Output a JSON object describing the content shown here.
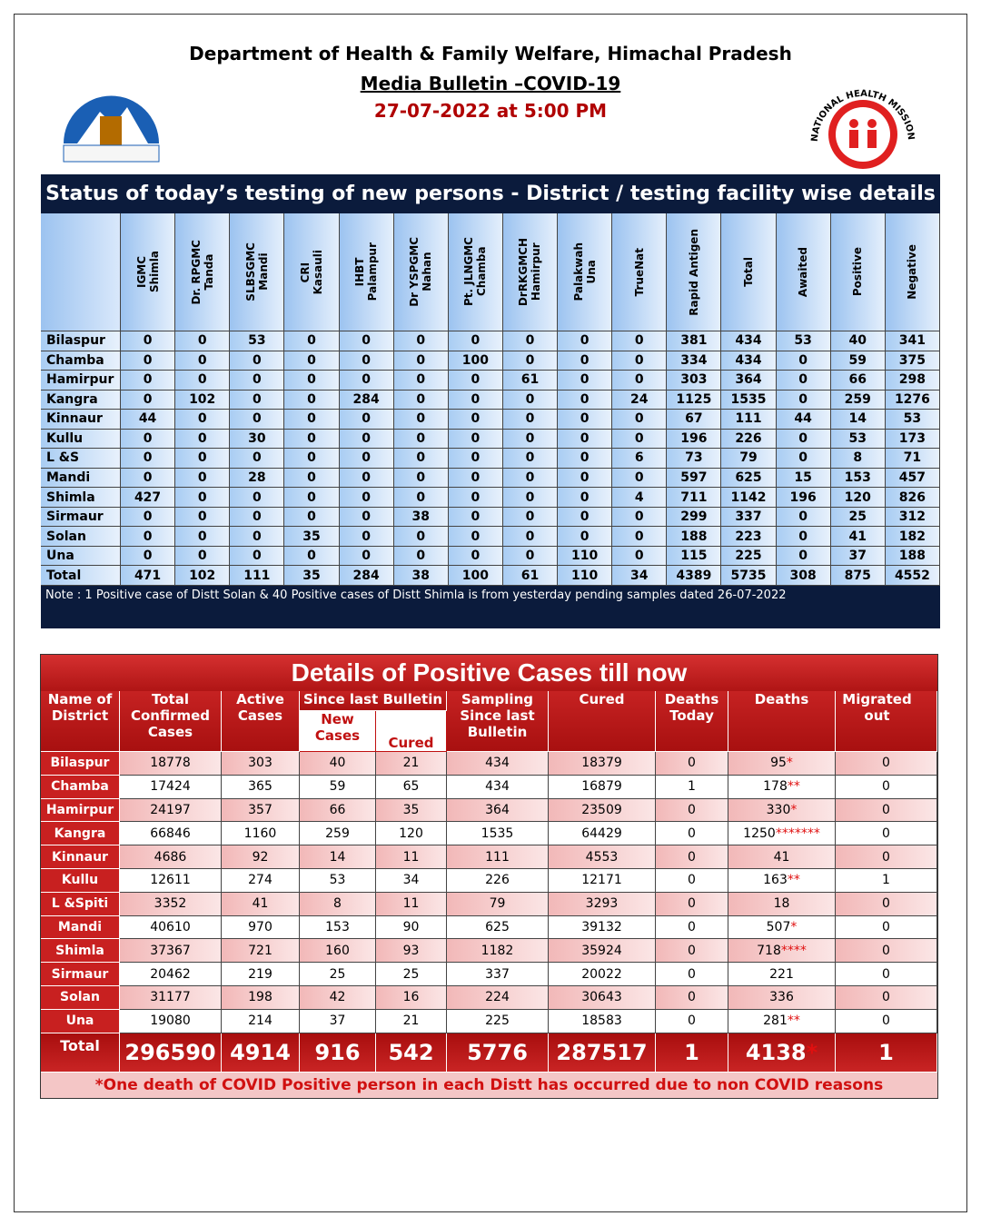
{
  "header": {
    "department": "Department of Health & Family Welfare, Himachal Pradesh",
    "bulletin": "Media Bulletin –COVID-19",
    "datetime": "27-07-2022 at 5:00 PM",
    "nhm_logo": "NATIONAL HEALTH MISSION"
  },
  "testing_table": {
    "title": "Status of today’s testing of new persons - District / testing facility wise details",
    "columns": [
      [
        "IGMC",
        "Shimla"
      ],
      [
        "Dr. RPGMC",
        "Tanda"
      ],
      [
        "SLBSGMC",
        "Mandi"
      ],
      [
        "CRI",
        "Kasauli"
      ],
      [
        "IHBT",
        "Palampur"
      ],
      [
        "Dr YSPGMC",
        "Nahan"
      ],
      [
        "Pt. JLNGMC",
        "Chamba"
      ],
      [
        "DrRKGMCH",
        "Hamirpur"
      ],
      [
        "Palakwah",
        "Una"
      ],
      [
        "TrueNat"
      ],
      [
        "Rapid  Antigen"
      ],
      [
        "Total"
      ],
      [
        "Awaited"
      ],
      [
        "Positive"
      ],
      [
        "Negative"
      ]
    ],
    "rows": [
      [
        "Bilaspur",
        0,
        0,
        53,
        0,
        0,
        0,
        0,
        0,
        0,
        0,
        381,
        434,
        53,
        40,
        341
      ],
      [
        "Chamba",
        0,
        0,
        0,
        0,
        0,
        0,
        100,
        0,
        0,
        0,
        334,
        434,
        0,
        59,
        375
      ],
      [
        "Hamirpur",
        0,
        0,
        0,
        0,
        0,
        0,
        0,
        61,
        0,
        0,
        303,
        364,
        0,
        66,
        298
      ],
      [
        "Kangra",
        0,
        102,
        0,
        0,
        284,
        0,
        0,
        0,
        0,
        24,
        1125,
        1535,
        0,
        259,
        1276
      ],
      [
        "Kinnaur",
        44,
        0,
        0,
        0,
        0,
        0,
        0,
        0,
        0,
        0,
        67,
        111,
        44,
        14,
        53
      ],
      [
        "Kullu",
        0,
        0,
        30,
        0,
        0,
        0,
        0,
        0,
        0,
        0,
        196,
        226,
        0,
        53,
        173
      ],
      [
        "L &S",
        0,
        0,
        0,
        0,
        0,
        0,
        0,
        0,
        0,
        6,
        73,
        79,
        0,
        8,
        71
      ],
      [
        "Mandi",
        0,
        0,
        28,
        0,
        0,
        0,
        0,
        0,
        0,
        0,
        597,
        625,
        15,
        153,
        457
      ],
      [
        "Shimla",
        427,
        0,
        0,
        0,
        0,
        0,
        0,
        0,
        0,
        4,
        711,
        1142,
        196,
        120,
        826
      ],
      [
        "Sirmaur",
        0,
        0,
        0,
        0,
        0,
        38,
        0,
        0,
        0,
        0,
        299,
        337,
        0,
        25,
        312
      ],
      [
        "Solan",
        0,
        0,
        0,
        35,
        0,
        0,
        0,
        0,
        0,
        0,
        188,
        223,
        0,
        41,
        182
      ],
      [
        "Una",
        0,
        0,
        0,
        0,
        0,
        0,
        0,
        0,
        110,
        0,
        115,
        225,
        0,
        37,
        188
      ],
      [
        "Total",
        471,
        102,
        111,
        35,
        284,
        38,
        100,
        61,
        110,
        34,
        4389,
        5735,
        308,
        875,
        4552
      ]
    ],
    "note": "Note : 1 Positive case of Distt Solan &  40 Positive cases of Distt Shimla  is from yesterday pending samples dated 26-07-2022"
  },
  "positive_table": {
    "title": "Details of Positive Cases till now",
    "headers": {
      "name": "Name of District",
      "total": "Total Confirmed Cases",
      "active": "Active Cases",
      "since": "Since last Bulletin",
      "new": "New Cases",
      "cured_since": "Cured",
      "sampling": "Sampling Since last Bulletin",
      "cured": "Cured",
      "deaths_today": "Deaths Today",
      "deaths": "Deaths",
      "migrated": "Migrated out"
    },
    "rows": [
      [
        "Bilaspur",
        18778,
        303,
        40,
        21,
        434,
        18379,
        0,
        {
          "value": 95,
          "mark": "*"
        },
        0
      ],
      [
        "Chamba",
        17424,
        365,
        59,
        65,
        434,
        16879,
        1,
        {
          "value": 178,
          "mark": "**"
        },
        0
      ],
      [
        "Hamirpur",
        24197,
        357,
        66,
        35,
        364,
        23509,
        0,
        {
          "value": 330,
          "mark": "*"
        },
        0
      ],
      [
        "Kangra",
        66846,
        1160,
        259,
        120,
        1535,
        64429,
        0,
        {
          "value": 1250,
          "mark": "*******"
        },
        0
      ],
      [
        "Kinnaur",
        4686,
        92,
        14,
        11,
        111,
        4553,
        0,
        41,
        0
      ],
      [
        "Kullu",
        12611,
        274,
        53,
        34,
        226,
        12171,
        0,
        {
          "value": 163,
          "mark": "**"
        },
        1
      ],
      [
        "L &Spiti",
        3352,
        41,
        8,
        11,
        79,
        3293,
        0,
        18,
        0
      ],
      [
        "Mandi",
        40610,
        970,
        153,
        90,
        625,
        39132,
        0,
        {
          "value": 507,
          "mark": "*"
        },
        0
      ],
      [
        "Shimla",
        37367,
        721,
        160,
        93,
        1182,
        35924,
        0,
        {
          "value": 718,
          "mark": "****"
        },
        0
      ],
      [
        "Sirmaur",
        20462,
        219,
        25,
        25,
        337,
        20022,
        0,
        221,
        0
      ],
      [
        "Solan",
        31177,
        198,
        42,
        16,
        224,
        30643,
        0,
        336,
        0
      ],
      [
        "Una",
        19080,
        214,
        37,
        21,
        225,
        18583,
        0,
        {
          "value": 281,
          "mark": "**"
        },
        0
      ]
    ],
    "total": [
      "Total",
      296590,
      4914,
      916,
      542,
      5776,
      287517,
      1,
      {
        "value": 4138,
        "mark": "*"
      },
      1
    ],
    "footnote": "*One death of COVID Positive person in each Distt has occurred due to non COVID reasons"
  }
}
